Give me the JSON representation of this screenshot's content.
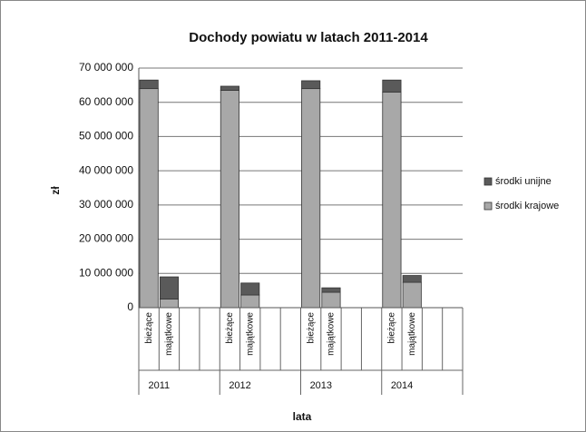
{
  "chart_data": {
    "type": "stacked_bar",
    "title": "Dochody powiatu w latach 2011-2014",
    "ylabel": "zł",
    "xlabel": "lata",
    "groups": [
      "2011",
      "2012",
      "2013",
      "2014"
    ],
    "categories": [
      "bieżące",
      "majątkowe",
      null,
      null,
      "bieżące",
      "majątkowe",
      null,
      null,
      "bieżące",
      "majątkowe",
      null,
      null,
      "bieżące",
      "majątkowe",
      null,
      null
    ],
    "series": [
      {
        "name": "środki krajowe",
        "color": "#a8a8a8",
        "values": [
          64000000,
          2500000,
          null,
          null,
          63500000,
          3700000,
          null,
          null,
          64000000,
          4500000,
          null,
          null,
          63000000,
          7400000,
          null,
          null
        ]
      },
      {
        "name": "środki unijne",
        "color": "#5a5a5a",
        "values": [
          2500000,
          6500000,
          null,
          null,
          1200000,
          3500000,
          null,
          null,
          2300000,
          1300000,
          null,
          null,
          3500000,
          2000000,
          null,
          null
        ]
      }
    ],
    "ylim": [
      0,
      70000000
    ],
    "yticks": [
      0,
      {
        "value": 10000000,
        "label": "10 000 000"
      },
      {
        "value": 20000000,
        "label": "20 000 000"
      },
      {
        "value": 30000000,
        "label": "30 000 000"
      },
      {
        "value": 40000000,
        "label": "40 000 000"
      },
      {
        "value": 50000000,
        "label": "50 000 000"
      },
      {
        "value": 60000000,
        "label": "60 000 000"
      },
      {
        "value": 70000000,
        "label": "70 000 000"
      }
    ],
    "grid": true,
    "legend": "right"
  }
}
